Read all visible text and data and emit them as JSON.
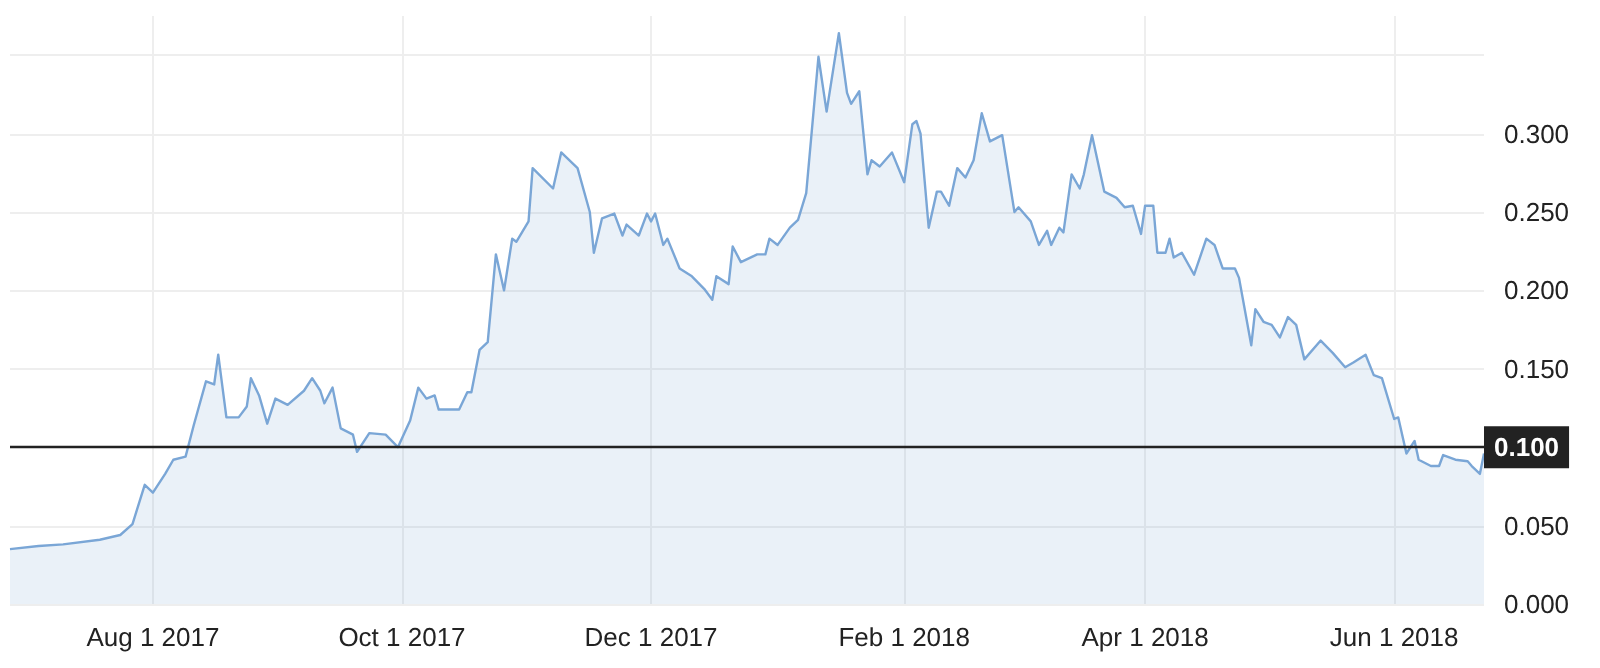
{
  "chart_data": {
    "type": "area",
    "x": [
      "2017-06-27",
      "2017-07-04",
      "2017-07-10",
      "2017-07-19",
      "2017-07-24",
      "2017-07-27",
      "2017-07-30",
      "2017-08-01",
      "2017-08-04",
      "2017-08-06",
      "2017-08-09",
      "2017-08-11",
      "2017-08-14",
      "2017-08-16",
      "2017-08-17",
      "2017-08-19",
      "2017-08-22",
      "2017-08-24",
      "2017-08-25",
      "2017-08-27",
      "2017-08-29",
      "2017-08-31",
      "2017-09-03",
      "2017-09-07",
      "2017-09-09",
      "2017-09-11",
      "2017-09-12",
      "2017-09-14",
      "2017-09-16",
      "2017-09-19",
      "2017-09-20",
      "2017-09-23",
      "2017-09-27",
      "2017-09-30",
      "2017-10-03",
      "2017-10-05",
      "2017-10-07",
      "2017-10-09",
      "2017-10-10",
      "2017-10-15",
      "2017-10-17",
      "2017-10-18",
      "2017-10-20",
      "2017-10-22",
      "2017-10-24",
      "2017-10-26",
      "2017-10-28",
      "2017-10-29",
      "2017-11-01",
      "2017-11-02",
      "2017-11-07",
      "2017-11-09",
      "2017-11-13",
      "2017-11-16",
      "2017-11-17",
      "2017-11-19",
      "2017-11-22",
      "2017-11-24",
      "2017-11-25",
      "2017-11-28",
      "2017-11-30",
      "2017-12-01",
      "2017-12-02",
      "2017-12-04",
      "2017-12-05",
      "2017-12-08",
      "2017-12-11",
      "2017-12-14",
      "2017-12-16",
      "2017-12-17",
      "2017-12-20",
      "2017-12-21",
      "2017-12-23",
      "2017-12-27",
      "2017-12-29",
      "2017-12-30",
      "2018-01-01",
      "2018-01-04",
      "2018-01-06",
      "2018-01-08",
      "2018-01-11",
      "2018-01-13",
      "2018-01-16",
      "2018-01-18",
      "2018-01-19",
      "2018-01-21",
      "2018-01-23",
      "2018-01-24",
      "2018-01-26",
      "2018-01-29",
      "2018-02-01",
      "2018-02-03",
      "2018-02-04",
      "2018-02-05",
      "2018-02-07",
      "2018-02-09",
      "2018-02-10",
      "2018-02-12",
      "2018-02-14",
      "2018-02-16",
      "2018-02-18",
      "2018-02-20",
      "2018-02-22",
      "2018-02-25",
      "2018-02-28",
      "2018-03-01",
      "2018-03-04",
      "2018-03-06",
      "2018-03-08",
      "2018-03-09",
      "2018-03-11",
      "2018-03-12",
      "2018-03-14",
      "2018-03-16",
      "2018-03-17",
      "2018-03-19",
      "2018-03-22",
      "2018-03-25",
      "2018-03-27",
      "2018-03-29",
      "2018-03-31",
      "2018-04-01",
      "2018-04-03",
      "2018-04-04",
      "2018-04-06",
      "2018-04-07",
      "2018-04-08",
      "2018-04-10",
      "2018-04-13",
      "2018-04-16",
      "2018-04-18",
      "2018-04-20",
      "2018-04-23",
      "2018-04-24",
      "2018-04-27",
      "2018-04-28",
      "2018-04-30",
      "2018-05-02",
      "2018-05-04",
      "2018-05-06",
      "2018-05-08",
      "2018-05-10",
      "2018-05-14",
      "2018-05-17",
      "2018-05-20",
      "2018-05-22",
      "2018-05-25",
      "2018-05-27",
      "2018-05-29",
      "2018-06-01",
      "2018-06-02",
      "2018-06-04",
      "2018-06-06",
      "2018-06-07",
      "2018-06-10",
      "2018-06-12",
      "2018-06-13",
      "2018-06-16",
      "2018-06-19",
      "2018-06-20",
      "2018-06-22",
      "2018-06-23"
    ],
    "series": [
      {
        "color": "#7aa6d6",
        "values": [
          0.035,
          0.037,
          0.038,
          0.041,
          0.044,
          0.051,
          0.076,
          0.071,
          0.083,
          0.092,
          0.094,
          0.114,
          0.142,
          0.14,
          0.159,
          0.119,
          0.119,
          0.126,
          0.144,
          0.133,
          0.115,
          0.131,
          0.127,
          0.136,
          0.144,
          0.136,
          0.128,
          0.138,
          0.112,
          0.108,
          0.097,
          0.109,
          0.108,
          0.1,
          0.117,
          0.138,
          0.131,
          0.133,
          0.124,
          0.124,
          0.135,
          0.135,
          0.162,
          0.167,
          0.223,
          0.2,
          0.233,
          0.231,
          0.244,
          0.278,
          0.265,
          0.288,
          0.278,
          0.25,
          0.224,
          0.246,
          0.249,
          0.235,
          0.242,
          0.235,
          0.249,
          0.244,
          0.249,
          0.229,
          0.233,
          0.214,
          0.209,
          0.201,
          0.194,
          0.209,
          0.204,
          0.228,
          0.218,
          0.223,
          0.223,
          0.233,
          0.229,
          0.24,
          0.245,
          0.262,
          0.349,
          0.314,
          0.364,
          0.326,
          0.319,
          0.327,
          0.274,
          0.283,
          0.279,
          0.288,
          0.269,
          0.306,
          0.308,
          0.3,
          0.24,
          0.263,
          0.263,
          0.254,
          0.278,
          0.272,
          0.283,
          0.313,
          0.295,
          0.299,
          0.25,
          0.253,
          0.244,
          0.229,
          0.238,
          0.229,
          0.24,
          0.237,
          0.274,
          0.265,
          0.274,
          0.299,
          0.263,
          0.259,
          0.253,
          0.254,
          0.236,
          0.254,
          0.254,
          0.224,
          0.224,
          0.233,
          0.221,
          0.224,
          0.21,
          0.233,
          0.229,
          0.214,
          0.214,
          0.208,
          0.165,
          0.188,
          0.18,
          0.178,
          0.17,
          0.183,
          0.178,
          0.156,
          0.168,
          0.16,
          0.151,
          0.154,
          0.159,
          0.146,
          0.144,
          0.118,
          0.119,
          0.096,
          0.104,
          0.092,
          0.088,
          0.088,
          0.095,
          0.092,
          0.091,
          0.088,
          0.083,
          0.096
        ]
      }
    ],
    "xlim": [
      "2017-06-27",
      "2018-06-23"
    ],
    "xticks": [
      {
        "value": "2017-08-01",
        "label": "Aug 1 2017"
      },
      {
        "value": "2017-10-01",
        "label": "Oct 1 2017"
      },
      {
        "value": "2017-12-01",
        "label": "Dec 1 2017"
      },
      {
        "value": "2018-02-01",
        "label": "Feb 1 2018"
      },
      {
        "value": "2018-04-01",
        "label": "Apr 1 2018"
      },
      {
        "value": "2018-06-01",
        "label": "Jun 1 2018"
      }
    ],
    "ylim": [
      0,
      0.375
    ],
    "yticks": [
      {
        "value": 0,
        "label": "0.000"
      },
      {
        "value": 0.05,
        "label": "0.050"
      },
      {
        "value": 0.1,
        "label": null
      },
      {
        "value": 0.15,
        "label": "0.150"
      },
      {
        "value": 0.2,
        "label": "0.200"
      },
      {
        "value": 0.25,
        "label": "0.250"
      },
      {
        "value": 0.3,
        "label": "0.300"
      },
      {
        "value": 0.35,
        "label": null
      }
    ],
    "ref_lines": [
      {
        "axis": "y",
        "value": 0.1,
        "label": "0.100",
        "color": "#222222"
      }
    ],
    "grid": true
  }
}
